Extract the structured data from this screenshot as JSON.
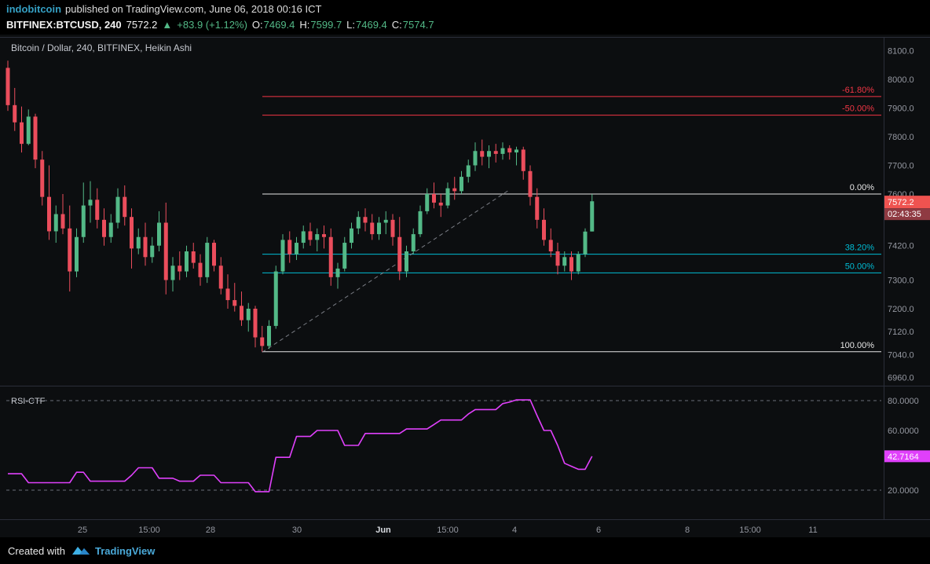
{
  "colors": {
    "bg": "#0e1013",
    "up": "#53b987",
    "down": "#eb4d5c",
    "fib_red": "#f23645",
    "fib_cyan": "#00bcd4",
    "fib_white": "#e6e6e6",
    "rsi_line": "#e040fb",
    "axis_text": "#9598a1",
    "separator": "#2a2e39",
    "badge_price_bg": "#ef5350",
    "badge_countdown_bg": "#8f3a42",
    "badge_rsi_bg": "#e040fb",
    "trendline": "#9598a1",
    "guide": "#6a6d78",
    "time_major": "#d8dbe0"
  },
  "header": {
    "byline": {
      "author": "indobitcoin",
      "rest": "published on TradingView.com, June 06, 2018 00:16 ICT"
    },
    "symbol_line": {
      "symbol": "BITFINEX:BTCUSD, 240",
      "last": "7572.2",
      "arrow": "▲",
      "change": "+83.9 (+1.12%)",
      "ohlc": {
        "o_label": "O:",
        "o": "7469.4",
        "h_label": "H:",
        "h": "7599.7",
        "l_label": "L:",
        "l": "7469.4",
        "c_label": "C:",
        "c": "7574.7"
      }
    }
  },
  "chart": {
    "title": "Bitcoin / Dollar, 240, BITFINEX, Heikin Ashi"
  },
  "price_axis": {
    "badge": "7572.2",
    "countdown": "02:43:35"
  },
  "rsi": {
    "title": "RSI-CTF",
    "badge": "42.7164"
  },
  "time_axis": {
    "labels": [
      {
        "label": "25",
        "x": 105,
        "major": false
      },
      {
        "label": "15:00",
        "x": 190,
        "major": false
      },
      {
        "label": "28",
        "x": 268,
        "major": false
      },
      {
        "label": "30",
        "x": 378,
        "major": false
      },
      {
        "label": "Jun",
        "x": 488,
        "major": true
      },
      {
        "label": "15:00",
        "x": 570,
        "major": false
      },
      {
        "label": "4",
        "x": 655,
        "major": false
      },
      {
        "label": "6",
        "x": 762,
        "major": false
      },
      {
        "label": "8",
        "x": 875,
        "major": false
      },
      {
        "label": "15:00",
        "x": 955,
        "major": false
      },
      {
        "label": "11",
        "x": 1035,
        "major": false
      }
    ]
  },
  "footer": {
    "created_with": "Created with",
    "brand": "TradingView"
  },
  "chart_data": [
    {
      "type": "candlestick",
      "symbol": "BITFINEX:BTCUSD",
      "interval": "240",
      "style": "Heikin Ashi",
      "title": "Bitcoin / Dollar, 240, BITFINEX, Heikin Ashi",
      "last": 7572.2,
      "change": 83.9,
      "change_pct": 1.12,
      "ohlc_current": {
        "o": 7469.4,
        "h": 7599.7,
        "l": 7469.4,
        "c": 7574.7
      },
      "countdown": "02:43:35",
      "ylim": [
        6930,
        8150
      ],
      "y_axis_labels": [
        8100,
        8000,
        7900,
        7800,
        7700,
        7600,
        7420,
        7300,
        7200,
        7120,
        7040,
        6960
      ],
      "fib_anchor": {
        "low": 7050,
        "high": 7600
      },
      "fib_levels": [
        {
          "label": "-61.80%",
          "price": 7940,
          "color_key": "fib_red"
        },
        {
          "label": "-50.00%",
          "price": 7875,
          "color_key": "fib_red"
        },
        {
          "label": "0.00%",
          "price": 7600,
          "color_key": "fib_white"
        },
        {
          "label": "38.20%",
          "price": 7390,
          "color_key": "fib_cyan"
        },
        {
          "label": "50.00%",
          "price": 7325,
          "color_key": "fib_cyan"
        },
        {
          "label": "100.00%",
          "price": 7050,
          "color_key": "fib_white"
        }
      ],
      "trendline": {
        "from_index": 37,
        "from_price": 7048,
        "to_index": 73,
        "to_price": 7615,
        "style": "dashed"
      },
      "candles": [
        [
          8040,
          8065,
          7890,
          7910
        ],
        [
          7910,
          7970,
          7820,
          7850
        ],
        [
          7850,
          7905,
          7745,
          7775
        ],
        [
          7775,
          7895,
          7770,
          7870
        ],
        [
          7870,
          7880,
          7690,
          7720
        ],
        [
          7720,
          7750,
          7560,
          7590
        ],
        [
          7590,
          7700,
          7440,
          7470
        ],
        [
          7470,
          7560,
          7430,
          7530
        ],
        [
          7530,
          7600,
          7460,
          7480
        ],
        [
          7480,
          7560,
          7260,
          7330
        ],
        [
          7330,
          7480,
          7310,
          7450
        ],
        [
          7450,
          7640,
          7430,
          7560
        ],
        [
          7560,
          7645,
          7500,
          7580
        ],
        [
          7580,
          7620,
          7480,
          7510
        ],
        [
          7510,
          7550,
          7420,
          7450
        ],
        [
          7450,
          7530,
          7430,
          7500
        ],
        [
          7500,
          7620,
          7480,
          7590
        ],
        [
          7590,
          7630,
          7490,
          7520
        ],
        [
          7520,
          7550,
          7340,
          7410
        ],
        [
          7410,
          7480,
          7390,
          7450
        ],
        [
          7450,
          7500,
          7350,
          7380
        ],
        [
          7380,
          7450,
          7360,
          7420
        ],
        [
          7420,
          7540,
          7400,
          7500
        ],
        [
          7500,
          7570,
          7250,
          7300
        ],
        [
          7300,
          7380,
          7260,
          7350
        ],
        [
          7350,
          7400,
          7300,
          7330
        ],
        [
          7330,
          7420,
          7310,
          7400
        ],
        [
          7400,
          7430,
          7340,
          7360
        ],
        [
          7360,
          7390,
          7280,
          7310
        ],
        [
          7310,
          7450,
          7290,
          7430
        ],
        [
          7430,
          7440,
          7330,
          7350
        ],
        [
          7350,
          7380,
          7250,
          7270
        ],
        [
          7270,
          7320,
          7200,
          7230
        ],
        [
          7230,
          7290,
          7190,
          7210
        ],
        [
          7210,
          7260,
          7140,
          7160
        ],
        [
          7160,
          7220,
          7120,
          7200
        ],
        [
          7200,
          7210,
          7065,
          7100
        ],
        [
          7100,
          7140,
          7050,
          7070
        ],
        [
          7070,
          7160,
          7060,
          7140
        ],
        [
          7140,
          7350,
          7130,
          7330
        ],
        [
          7330,
          7460,
          7320,
          7440
        ],
        [
          7440,
          7470,
          7360,
          7390
        ],
        [
          7390,
          7450,
          7370,
          7430
        ],
        [
          7430,
          7490,
          7410,
          7470
        ],
        [
          7470,
          7500,
          7420,
          7440
        ],
        [
          7440,
          7480,
          7400,
          7460
        ],
        [
          7460,
          7490,
          7410,
          7450
        ],
        [
          7450,
          7480,
          7280,
          7310
        ],
        [
          7310,
          7360,
          7270,
          7340
        ],
        [
          7340,
          7450,
          7330,
          7430
        ],
        [
          7430,
          7500,
          7410,
          7480
        ],
        [
          7480,
          7540,
          7460,
          7520
        ],
        [
          7520,
          7550,
          7470,
          7500
        ],
        [
          7500,
          7530,
          7440,
          7460
        ],
        [
          7460,
          7520,
          7440,
          7500
        ],
        [
          7500,
          7540,
          7460,
          7510
        ],
        [
          7510,
          7530,
          7420,
          7450
        ],
        [
          7450,
          7520,
          7300,
          7330
        ],
        [
          7330,
          7420,
          7310,
          7400
        ],
        [
          7400,
          7480,
          7390,
          7460
        ],
        [
          7460,
          7560,
          7450,
          7540
        ],
        [
          7540,
          7620,
          7530,
          7600
        ],
        [
          7600,
          7640,
          7550,
          7570
        ],
        [
          7570,
          7600,
          7520,
          7560
        ],
        [
          7560,
          7640,
          7550,
          7620
        ],
        [
          7620,
          7660,
          7580,
          7610
        ],
        [
          7610,
          7680,
          7600,
          7660
        ],
        [
          7660,
          7720,
          7640,
          7700
        ],
        [
          7700,
          7780,
          7680,
          7750
        ],
        [
          7750,
          7790,
          7700,
          7730
        ],
        [
          7730,
          7770,
          7690,
          7750
        ],
        [
          7750,
          7775,
          7710,
          7740
        ],
        [
          7740,
          7780,
          7720,
          7760
        ],
        [
          7760,
          7770,
          7720,
          7745
        ],
        [
          7745,
          7765,
          7700,
          7755
        ],
        [
          7755,
          7765,
          7650,
          7680
        ],
        [
          7680,
          7700,
          7560,
          7590
        ],
        [
          7590,
          7620,
          7480,
          7510
        ],
        [
          7510,
          7550,
          7420,
          7440
        ],
        [
          7440,
          7480,
          7380,
          7400
        ],
        [
          7400,
          7430,
          7320,
          7350
        ],
        [
          7350,
          7400,
          7330,
          7380
        ],
        [
          7380,
          7400,
          7300,
          7330
        ],
        [
          7330,
          7400,
          7320,
          7390
        ],
        [
          7390,
          7480,
          7380,
          7469
        ],
        [
          7469.4,
          7599.7,
          7469.4,
          7574.7
        ]
      ]
    },
    {
      "type": "line",
      "name": "RSI-CTF",
      "last_value": 42.7164,
      "ylim": [
        5,
        90
      ],
      "guides": [
        80,
        20
      ],
      "y_labels": [
        80,
        60,
        20
      ],
      "points": [
        [
          0,
          31
        ],
        [
          2,
          31
        ],
        [
          3,
          25
        ],
        [
          9,
          25
        ],
        [
          10,
          32
        ],
        [
          11,
          32
        ],
        [
          12,
          26
        ],
        [
          17,
          26
        ],
        [
          18,
          30
        ],
        [
          19,
          35
        ],
        [
          21,
          35
        ],
        [
          22,
          28
        ],
        [
          24,
          28
        ],
        [
          25,
          26
        ],
        [
          27,
          26
        ],
        [
          28,
          30
        ],
        [
          30,
          30
        ],
        [
          31,
          25
        ],
        [
          35,
          25
        ],
        [
          36,
          19
        ],
        [
          38,
          19
        ],
        [
          39,
          42
        ],
        [
          41,
          42
        ],
        [
          42,
          56
        ],
        [
          44,
          56
        ],
        [
          45,
          60
        ],
        [
          48,
          60
        ],
        [
          49,
          50
        ],
        [
          51,
          50
        ],
        [
          52,
          58
        ],
        [
          57,
          58
        ],
        [
          58,
          61
        ],
        [
          61,
          61
        ],
        [
          62,
          64
        ],
        [
          63,
          67
        ],
        [
          66,
          67
        ],
        [
          67,
          71
        ],
        [
          68,
          74
        ],
        [
          71,
          74
        ],
        [
          72,
          78
        ],
        [
          73,
          79
        ],
        [
          74,
          80.5
        ],
        [
          76,
          80.5
        ],
        [
          77,
          70
        ],
        [
          78,
          60
        ],
        [
          79,
          60
        ],
        [
          80,
          50
        ],
        [
          81,
          38
        ],
        [
          82,
          36
        ],
        [
          83,
          34
        ],
        [
          84,
          34
        ],
        [
          85,
          42.7164
        ]
      ]
    }
  ]
}
